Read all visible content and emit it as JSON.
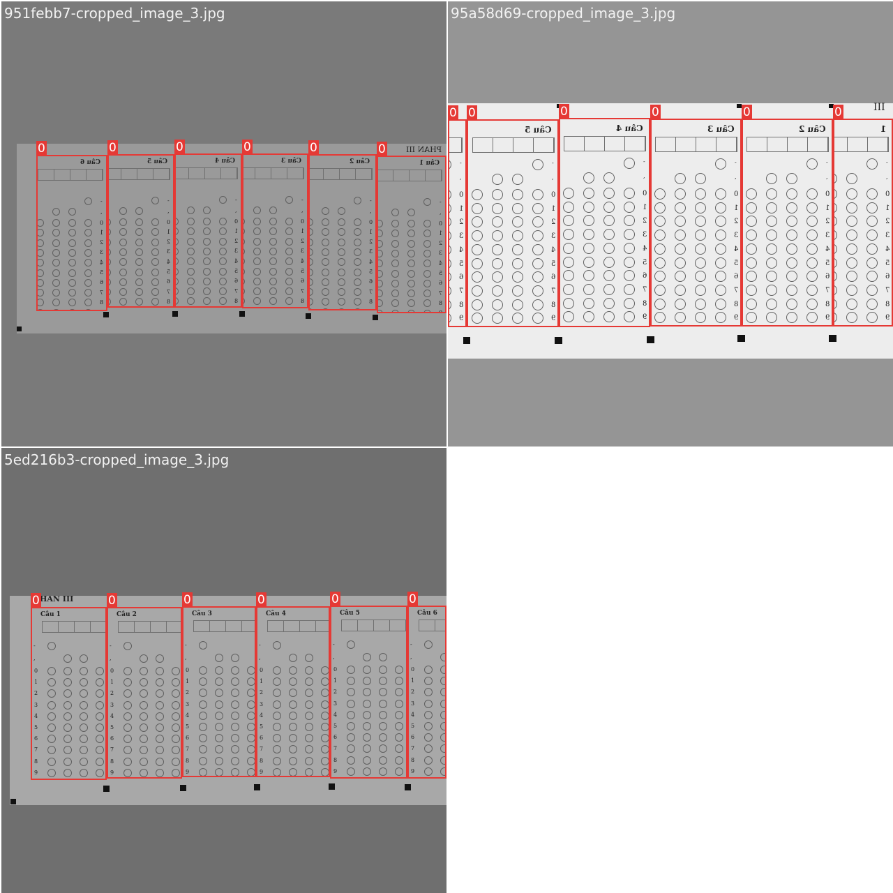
{
  "tiles": [
    {
      "filename": "951febb7-cropped_image_3.jpg",
      "detection_class": "0",
      "background": "#7a7a7a",
      "paper": "#9a9a9a",
      "section_title": "PHAN III",
      "columns": [
        "Câu 6",
        "Câu 5",
        "Câu 4",
        "Câu 3",
        "Câu 2",
        "Câu 1"
      ]
    },
    {
      "filename": "95a58d69-cropped_image_3.jpg",
      "detection_class": "0",
      "background": "#959595",
      "paper": "#ededed",
      "section_title": "III",
      "columns": [
        "",
        "Câu 5",
        "Câu 4",
        "Câu 3",
        "Câu 2",
        "1"
      ]
    },
    {
      "filename": "5ed216b3-cropped_image_3.jpg",
      "detection_class": "0",
      "background": "#6f6f6f",
      "paper": "#a8a8a8",
      "section_title": "HAN III",
      "columns": [
        "Câu 1",
        "Câu 2",
        "Câu 3",
        "Câu 4",
        "Câu 5",
        "Câu 6"
      ]
    }
  ],
  "digits": [
    "0",
    "1",
    "2",
    "3",
    "4",
    "5",
    "6",
    "7",
    "8",
    "9"
  ],
  "signs": [
    "-",
    ","
  ],
  "colors": {
    "detection": "#e53935",
    "empty_quadrant": "#ffffff"
  }
}
